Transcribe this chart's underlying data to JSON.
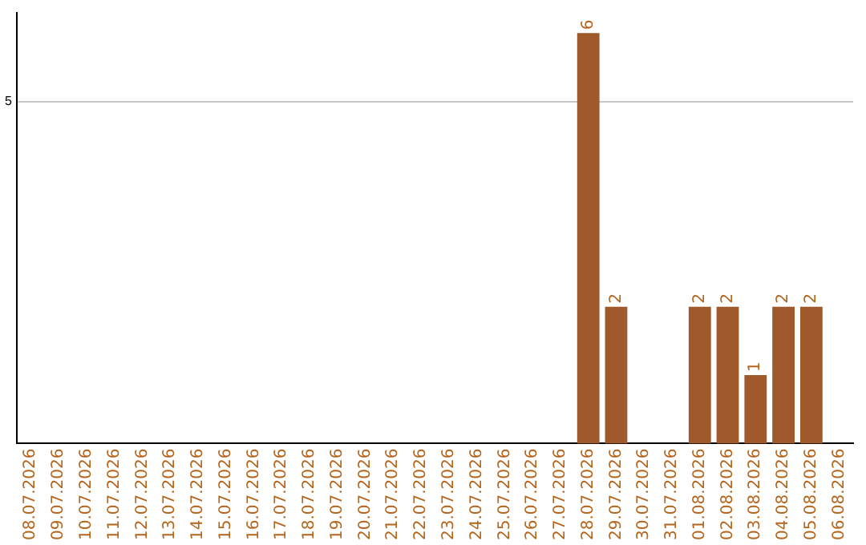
{
  "chart_data": {
    "type": "bar",
    "categories": [
      "08.07.2026",
      "09.07.2026",
      "10.07.2026",
      "11.07.2026",
      "12.07.2026",
      "13.07.2026",
      "14.07.2026",
      "15.07.2026",
      "16.07.2026",
      "17.07.2026",
      "18.07.2026",
      "19.07.2026",
      "20.07.2026",
      "21.07.2026",
      "22.07.2026",
      "23.07.2026",
      "24.07.2026",
      "25.07.2026",
      "26.07.2026",
      "27.07.2026",
      "28.07.2026",
      "29.07.2026",
      "30.07.2026",
      "31.07.2026",
      "01.08.2026",
      "02.08.2026",
      "03.08.2026",
      "04.08.2026",
      "05.08.2026",
      "06.08.2026"
    ],
    "values": [
      null,
      null,
      null,
      null,
      null,
      null,
      null,
      null,
      null,
      null,
      null,
      null,
      null,
      null,
      null,
      null,
      null,
      null,
      null,
      null,
      6,
      2,
      null,
      null,
      2,
      2,
      1,
      2,
      2,
      null
    ],
    "value_labels": [
      null,
      null,
      null,
      null,
      null,
      null,
      null,
      null,
      null,
      null,
      null,
      null,
      null,
      null,
      null,
      null,
      null,
      null,
      null,
      null,
      "6",
      "2",
      null,
      null,
      "2",
      "2",
      "1",
      "2",
      "2",
      null
    ],
    "color": "#a0592b",
    "ylim": [
      0,
      6.3
    ],
    "yticks": [
      5
    ],
    "grid": "y",
    "legend": false
  }
}
